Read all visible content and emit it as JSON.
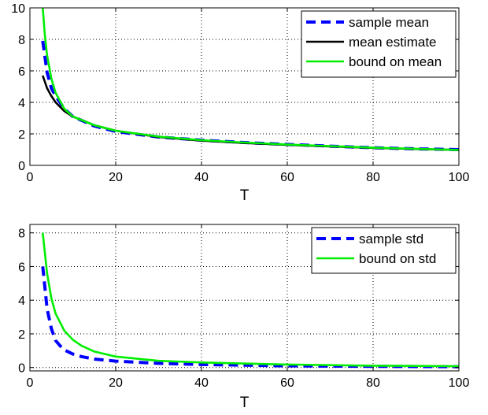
{
  "chart_data": [
    {
      "type": "line",
      "title": "",
      "xlabel": "T",
      "ylabel": "",
      "xlim": [
        0,
        100
      ],
      "ylim": [
        0,
        10
      ],
      "xticks": [
        0,
        20,
        40,
        60,
        80,
        100
      ],
      "yticks": [
        0,
        2,
        4,
        6,
        8,
        10
      ],
      "grid": true,
      "legend_position": "top-right",
      "series": [
        {
          "name": "sample mean",
          "style": "dashed",
          "color": "#0000ff",
          "x": [
            3,
            4,
            5,
            6,
            8,
            10,
            15,
            20,
            30,
            40,
            50,
            60,
            70,
            80,
            90,
            100
          ],
          "y": [
            7.9,
            5.9,
            4.9,
            4.4,
            3.6,
            3.1,
            2.5,
            2.15,
            1.8,
            1.6,
            1.45,
            1.33,
            1.22,
            1.12,
            1.05,
            1.0
          ]
        },
        {
          "name": "mean estimate",
          "style": "solid",
          "color": "#000000",
          "x": [
            3,
            4,
            5,
            6,
            8,
            10,
            15,
            20,
            30,
            40,
            50,
            60,
            70,
            80,
            90,
            100
          ],
          "y": [
            5.7,
            4.9,
            4.4,
            4.0,
            3.45,
            3.1,
            2.55,
            2.2,
            1.8,
            1.57,
            1.42,
            1.3,
            1.2,
            1.11,
            1.04,
            0.98
          ]
        },
        {
          "name": "bound on mean",
          "style": "solid",
          "color": "#00ee00",
          "x": [
            3,
            3.5,
            4,
            5,
            6,
            8,
            10,
            15,
            20,
            30,
            40,
            50,
            60,
            70,
            80,
            90,
            100
          ],
          "y": [
            10.0,
            8.2,
            7.0,
            5.5,
            4.6,
            3.6,
            3.1,
            2.55,
            2.2,
            1.83,
            1.6,
            1.45,
            1.32,
            1.22,
            1.12,
            1.05,
            0.98
          ]
        }
      ]
    },
    {
      "type": "line",
      "title": "",
      "xlabel": "T",
      "ylabel": "",
      "xlim": [
        0,
        100
      ],
      "ylim": [
        -0.2,
        8.5
      ],
      "xticks": [
        0,
        20,
        40,
        60,
        80,
        100
      ],
      "yticks": [
        0,
        2,
        4,
        6,
        8
      ],
      "grid": true,
      "legend_position": "top-right",
      "series": [
        {
          "name": "sample std",
          "style": "dashed",
          "color": "#0000ff",
          "x": [
            3,
            4,
            5,
            6,
            7,
            8,
            10,
            12,
            15,
            20,
            30,
            40,
            60,
            80,
            100
          ],
          "y": [
            6.0,
            3.5,
            2.3,
            1.6,
            1.3,
            1.05,
            0.8,
            0.65,
            0.5,
            0.38,
            0.25,
            0.18,
            0.1,
            0.07,
            0.05
          ]
        },
        {
          "name": "bound on std",
          "style": "solid",
          "color": "#00ee00",
          "x": [
            3,
            4,
            5,
            6,
            8,
            10,
            12,
            15,
            20,
            30,
            40,
            60,
            80,
            100
          ],
          "y": [
            8.0,
            5.6,
            4.1,
            3.2,
            2.2,
            1.65,
            1.3,
            0.95,
            0.65,
            0.4,
            0.3,
            0.18,
            0.11,
            0.08
          ]
        }
      ]
    }
  ]
}
